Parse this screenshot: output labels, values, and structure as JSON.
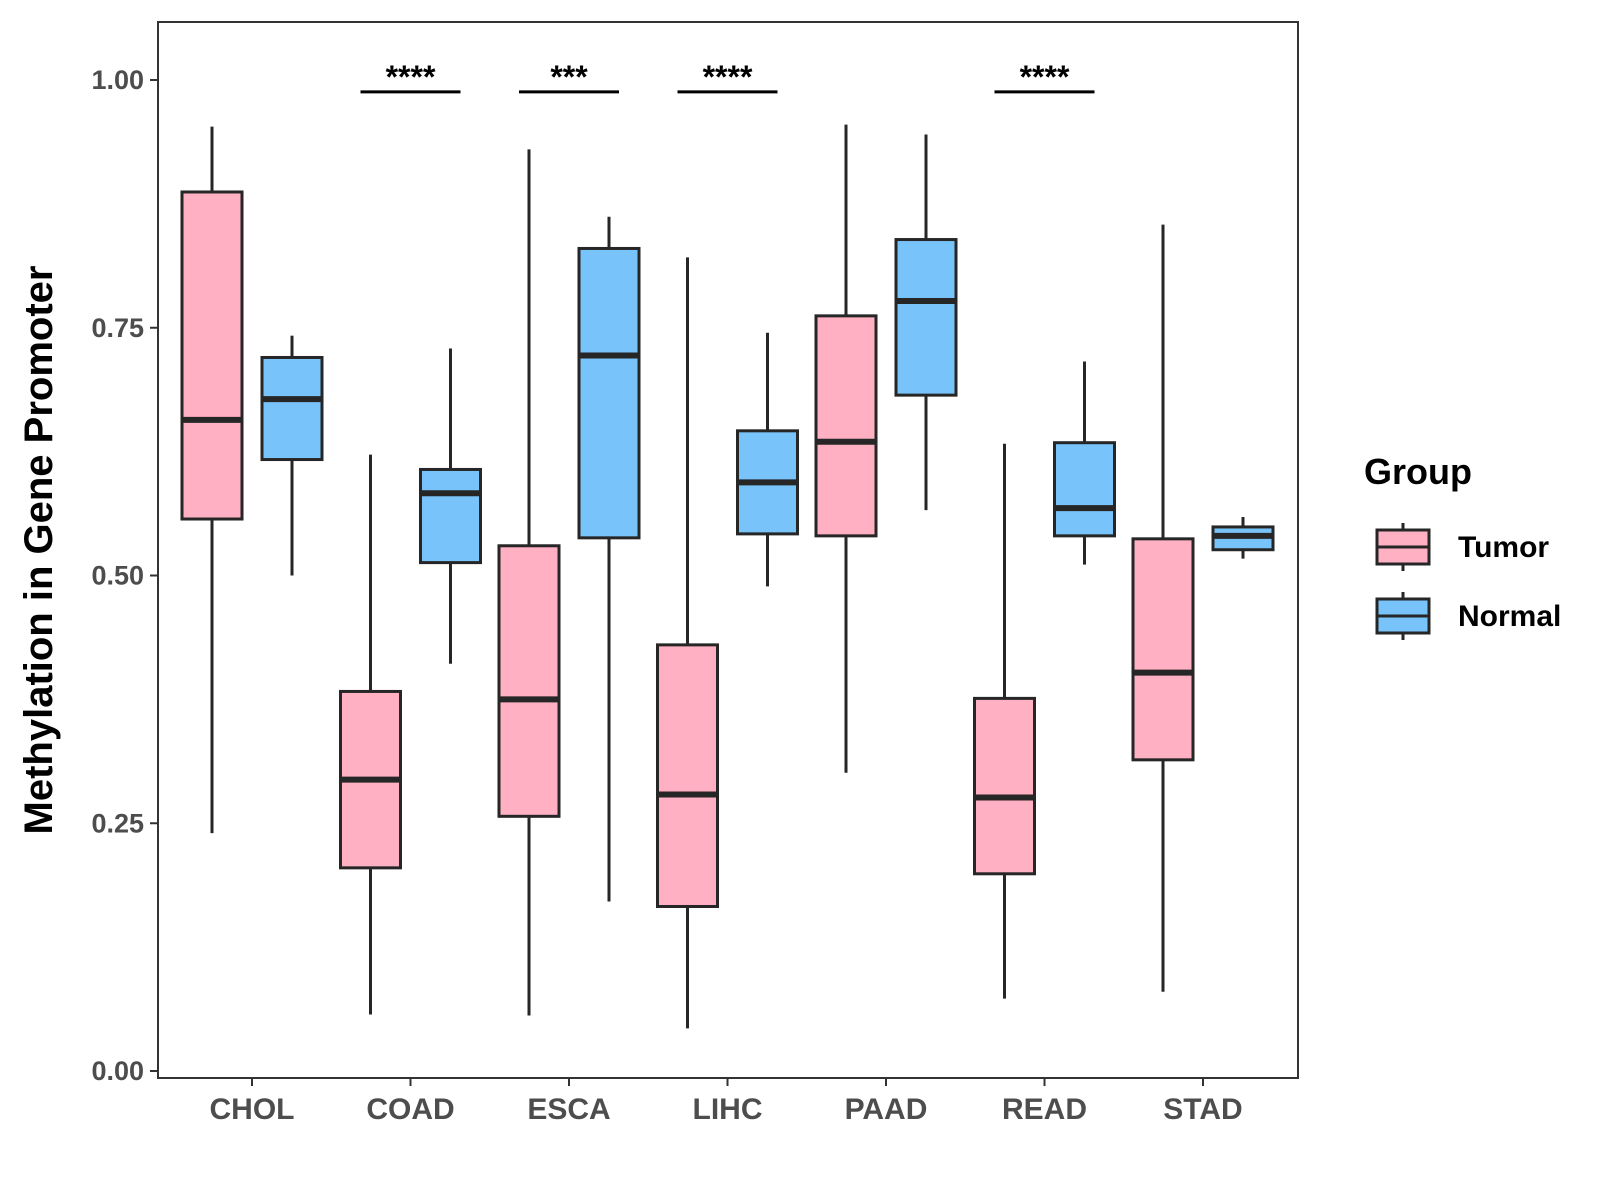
{
  "chart_data": {
    "type": "box",
    "title": "",
    "xlabel": "",
    "ylabel": "Methylation in Gene Promoter",
    "ylim": [
      -0.04,
      1.07
    ],
    "yticks": [
      0.0,
      0.25,
      0.5,
      0.75,
      1.0
    ],
    "ytick_labels": [
      "0.00",
      "0.25",
      "0.50",
      "0.75",
      "1.00"
    ],
    "categories": [
      "CHOL",
      "COAD",
      "ESCA",
      "LIHC",
      "PAAD",
      "READ",
      "STAD"
    ],
    "grid": false,
    "legend": {
      "title": "Group",
      "position": "right",
      "entries": [
        {
          "name": "Tumor",
          "color": "#FFB0C3"
        },
        {
          "name": "Normal",
          "color": "#78C3FA"
        }
      ]
    },
    "series": [
      {
        "name": "Tumor",
        "color": "#FFB0C3",
        "boxes": [
          {
            "category": "CHOL",
            "whisker_low": 0.24,
            "q1": 0.557,
            "median": 0.657,
            "q3": 0.887,
            "whisker_high": 0.953
          },
          {
            "category": "COAD",
            "whisker_low": 0.057,
            "q1": 0.205,
            "median": 0.294,
            "q3": 0.383,
            "whisker_high": 0.622
          },
          {
            "category": "ESCA",
            "whisker_low": 0.056,
            "q1": 0.257,
            "median": 0.375,
            "q3": 0.53,
            "whisker_high": 0.93
          },
          {
            "category": "LIHC",
            "whisker_low": 0.043,
            "q1": 0.166,
            "median": 0.279,
            "q3": 0.43,
            "whisker_high": 0.821
          },
          {
            "category": "PAAD",
            "whisker_low": 0.301,
            "q1": 0.54,
            "median": 0.635,
            "q3": 0.762,
            "whisker_high": 0.955
          },
          {
            "category": "READ",
            "whisker_low": 0.073,
            "q1": 0.199,
            "median": 0.276,
            "q3": 0.376,
            "whisker_high": 0.633
          },
          {
            "category": "STAD",
            "whisker_low": 0.08,
            "q1": 0.314,
            "median": 0.402,
            "q3": 0.537,
            "whisker_high": 0.854
          }
        ]
      },
      {
        "name": "Normal",
        "color": "#78C3FA",
        "boxes": [
          {
            "category": "CHOL",
            "whisker_low": 0.5,
            "q1": 0.617,
            "median": 0.678,
            "q3": 0.72,
            "whisker_high": 0.742
          },
          {
            "category": "COAD",
            "whisker_low": 0.411,
            "q1": 0.513,
            "median": 0.583,
            "q3": 0.607,
            "whisker_high": 0.729
          },
          {
            "category": "ESCA",
            "whisker_low": 0.171,
            "q1": 0.538,
            "median": 0.722,
            "q3": 0.83,
            "whisker_high": 0.862
          },
          {
            "category": "LIHC",
            "whisker_low": 0.489,
            "q1": 0.542,
            "median": 0.594,
            "q3": 0.646,
            "whisker_high": 0.745
          },
          {
            "category": "PAAD",
            "whisker_low": 0.566,
            "q1": 0.682,
            "median": 0.777,
            "q3": 0.839,
            "whisker_high": 0.945
          },
          {
            "category": "READ",
            "whisker_low": 0.511,
            "q1": 0.54,
            "median": 0.568,
            "q3": 0.634,
            "whisker_high": 0.716
          },
          {
            "category": "STAD",
            "whisker_low": 0.517,
            "q1": 0.526,
            "median": 0.54,
            "q3": 0.549,
            "whisker_high": 0.559
          }
        ]
      }
    ],
    "annotations": [
      {
        "category": "COAD",
        "text": "****",
        "y": 0.988
      },
      {
        "category": "ESCA",
        "text": "***",
        "y": 0.988
      },
      {
        "category": "LIHC",
        "text": "****",
        "y": 0.988
      },
      {
        "category": "READ",
        "text": "****",
        "y": 0.988
      }
    ]
  }
}
